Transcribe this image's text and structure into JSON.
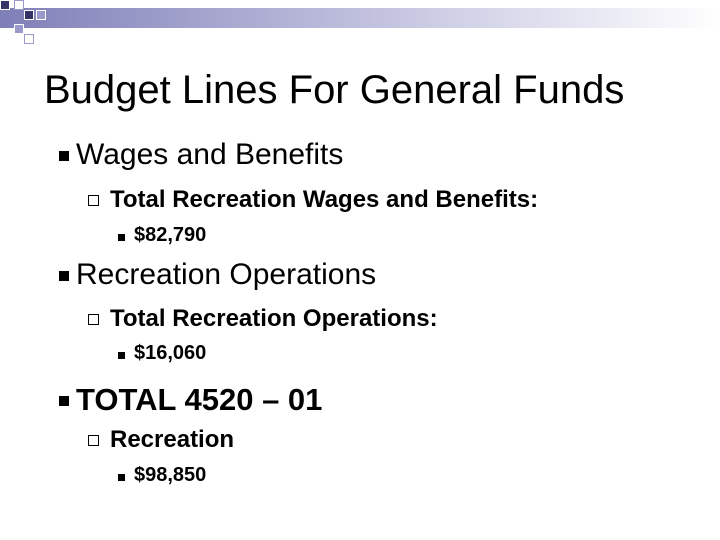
{
  "slide": {
    "title": "Budget Lines For General Funds",
    "items": [
      {
        "label": "Wages and Benefits",
        "sub": {
          "label": "Total Recreation Wages and Benefits:",
          "value": "$82,790"
        }
      },
      {
        "label": "Recreation Operations",
        "sub": {
          "label": "Total Recreation Operations:",
          "value": "$16,060"
        }
      },
      {
        "label": "TOTAL 4520 – 01",
        "sub": {
          "label": "Recreation",
          "value": "$98,850"
        }
      }
    ]
  },
  "colors": {
    "band_dark": "#7f7fb8",
    "accent_dark": "#333366",
    "accent_light": "#9999cc"
  }
}
